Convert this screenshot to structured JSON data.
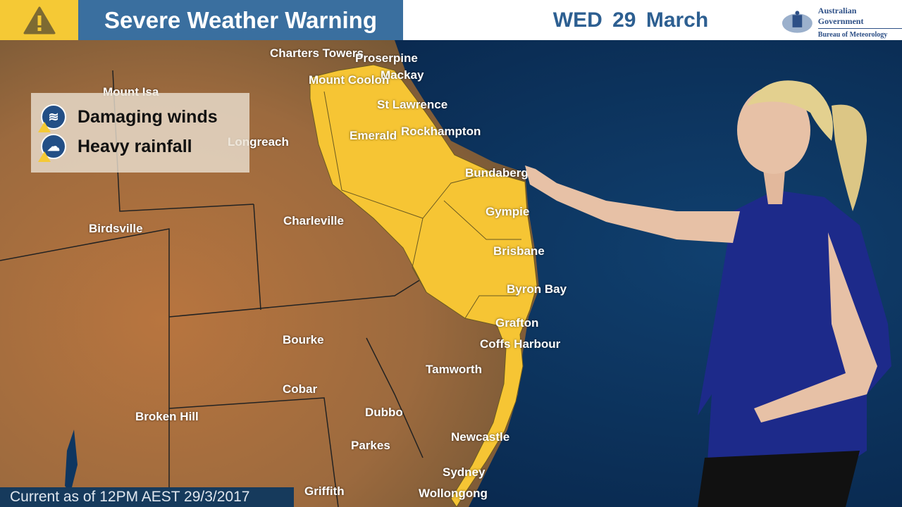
{
  "header": {
    "title": "Severe Weather Warning",
    "date": "WED  29 March",
    "warning_icon": "warning-triangle-icon",
    "logo": {
      "line1": "Australian Government",
      "line2": "Bureau of Meteorology"
    }
  },
  "legend": {
    "items": [
      {
        "label": "Damaging winds",
        "icon": "wind-icon"
      },
      {
        "label": "Heavy rainfall",
        "icon": "rain-cloud-icon"
      }
    ]
  },
  "cities": [
    "Charters Towers",
    "Proserpine",
    "Mackay",
    "Mount Coolon",
    "Mount Isa",
    "St Lawrence",
    "Rockhampton",
    "Emerald",
    "Longreach",
    "Bundaberg",
    "Gympie",
    "Charleville",
    "Birdsville",
    "Brisbane",
    "Byron Bay",
    "Grafton",
    "Coffs Harbour",
    "Bourke",
    "Tamworth",
    "Cobar",
    "Dubbo",
    "Broken Hill",
    "Newcastle",
    "Parkes",
    "Sydney",
    "Griffith",
    "Wollongong"
  ],
  "footer": {
    "text": "Current as of 12PM AEST 29/3/2017"
  },
  "colors": {
    "warning": "#f5c935",
    "title_bar": "#3a6f9f",
    "ocean": "#0b2d57",
    "land": "#a8683a"
  }
}
